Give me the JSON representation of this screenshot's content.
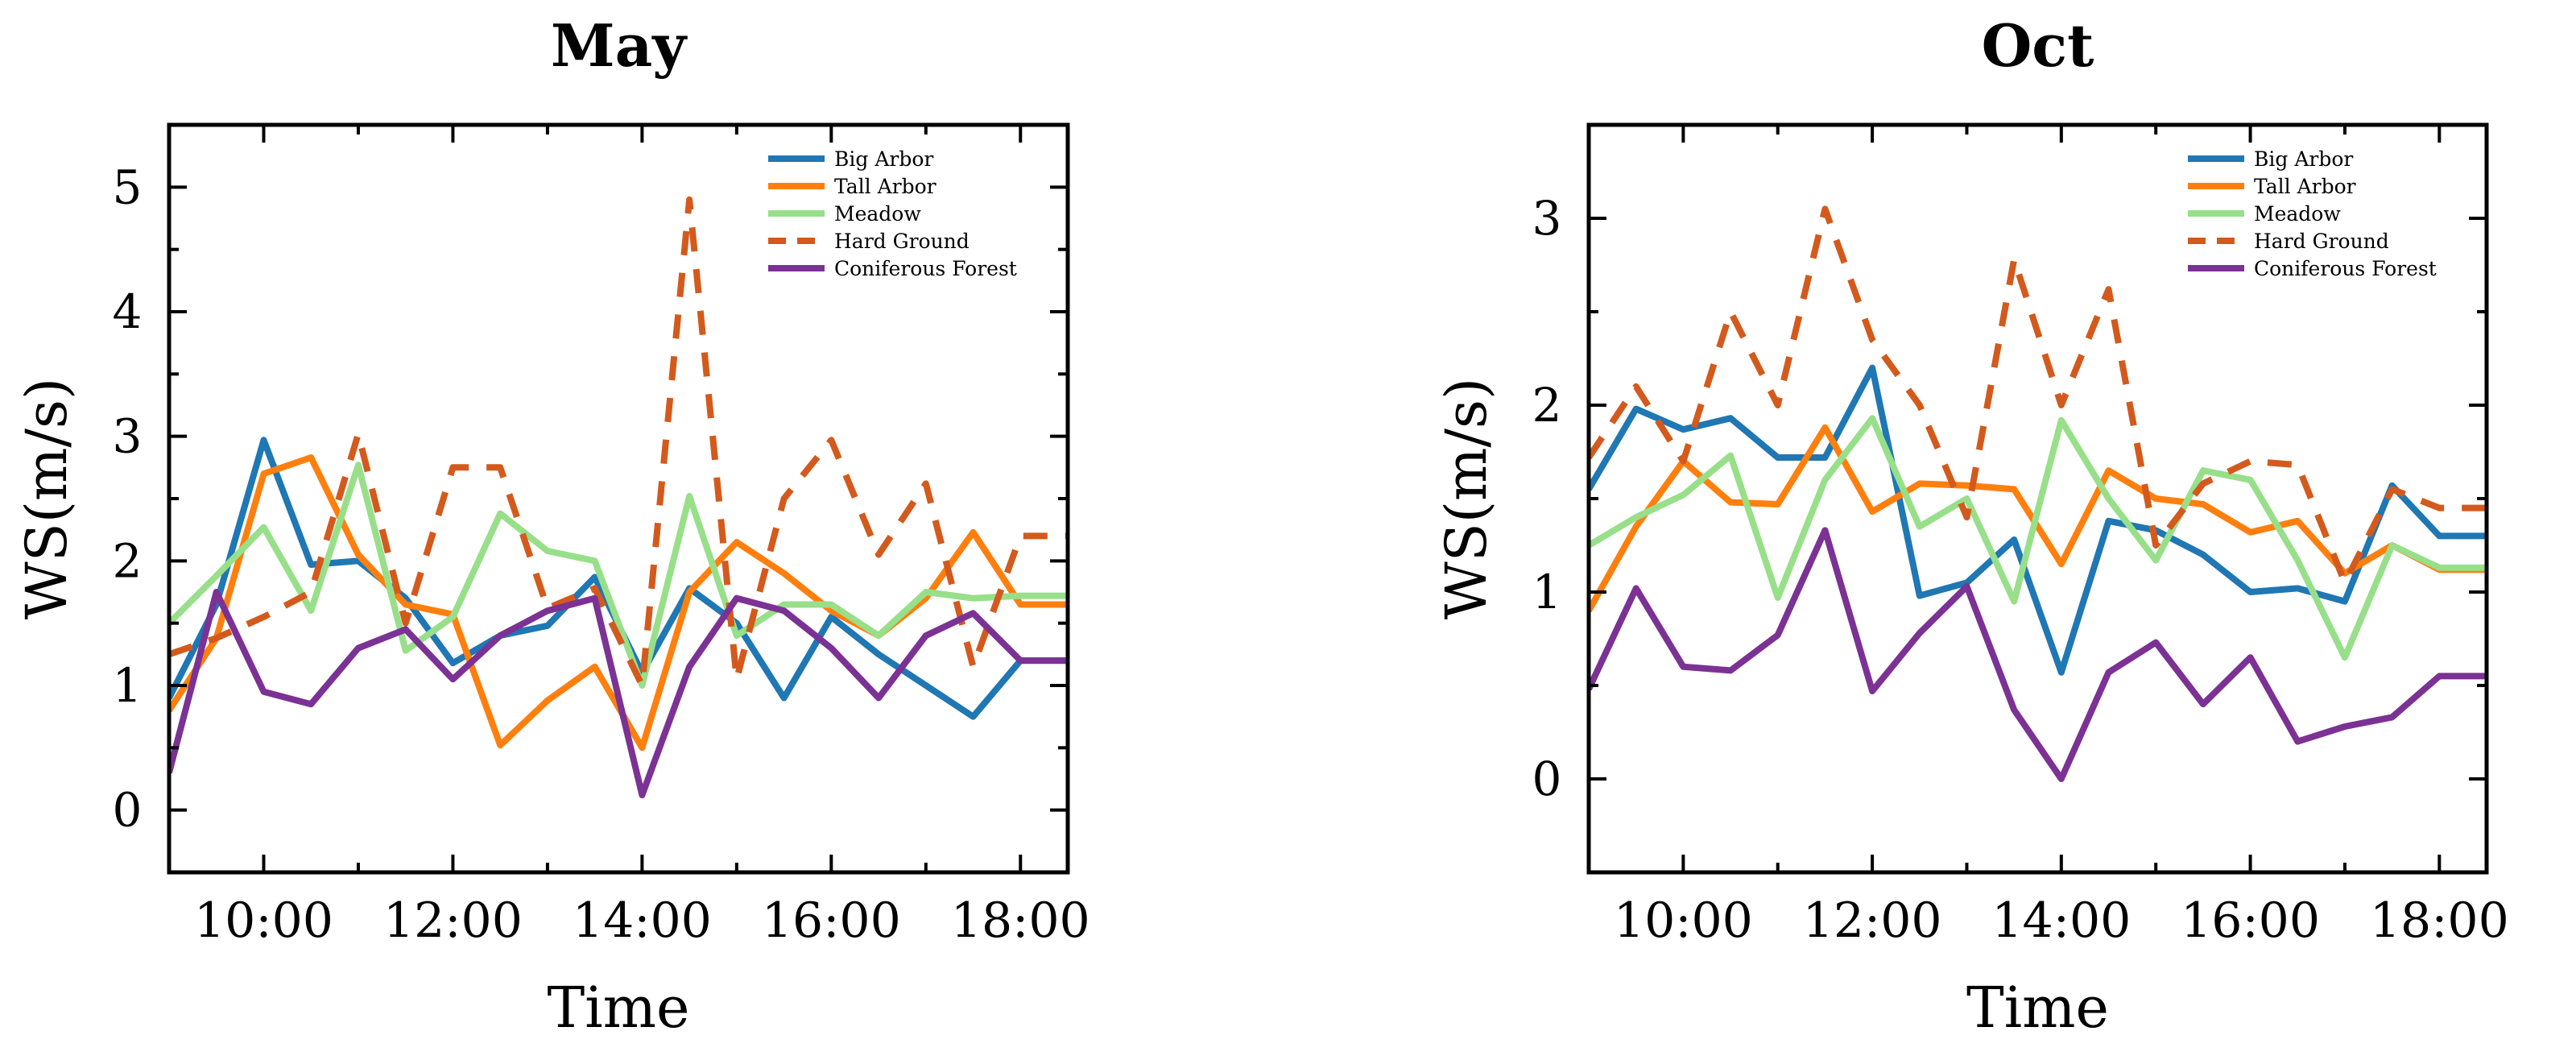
{
  "chart_data": [
    {
      "type": "line",
      "title": "May",
      "xlabel": "Time",
      "ylabel": "WS(m/s)",
      "xlim": [
        9.0,
        18.5
      ],
      "ylim": [
        -0.5,
        5.5
      ],
      "xticks": [
        10,
        12,
        14,
        16,
        18
      ],
      "xtick_labels": [
        "10:00",
        "12:00",
        "14:00",
        "16:00",
        "18:00"
      ],
      "yticks": [
        0,
        1,
        2,
        3,
        4,
        5
      ],
      "ytick_labels": [
        "0",
        "1",
        "2",
        "3",
        "4",
        "5"
      ],
      "legend_position": "top-right",
      "x": [
        9.0,
        9.5,
        10.0,
        10.5,
        11.0,
        11.5,
        12.0,
        12.5,
        13.0,
        13.5,
        14.0,
        14.5,
        15.0,
        15.5,
        16.0,
        16.5,
        17.0,
        17.5,
        18.0,
        18.5
      ],
      "series": [
        {
          "name": "Big Arbor",
          "color": "#1f77b4",
          "dash": "solid",
          "values": [
            0.9,
            1.65,
            2.97,
            1.97,
            2.0,
            1.7,
            1.18,
            1.4,
            1.48,
            1.87,
            1.1,
            1.78,
            1.5,
            0.9,
            1.55,
            1.25,
            1.0,
            0.75,
            1.2,
            1.2
          ]
        },
        {
          "name": "Tall Arbor",
          "color": "#ff7f0e",
          "dash": "solid",
          "values": [
            0.8,
            1.38,
            2.7,
            2.83,
            2.05,
            1.65,
            1.57,
            0.52,
            0.88,
            1.15,
            0.5,
            1.75,
            2.15,
            1.9,
            1.6,
            1.4,
            1.7,
            2.23,
            1.65,
            1.65
          ]
        },
        {
          "name": "Meadow",
          "color": "#98df8a",
          "dash": "solid",
          "values": [
            1.5,
            1.88,
            2.27,
            1.6,
            2.77,
            1.28,
            1.55,
            2.38,
            2.08,
            2.0,
            1.0,
            2.52,
            1.4,
            1.65,
            1.65,
            1.4,
            1.75,
            1.7,
            1.72,
            1.72
          ]
        },
        {
          "name": "Hard Ground",
          "color": "#d35a1c",
          "dash": "dashed",
          "values": [
            1.25,
            1.38,
            1.55,
            1.75,
            3.02,
            1.5,
            2.75,
            2.75,
            1.62,
            1.78,
            1.0,
            4.9,
            1.05,
            2.5,
            2.97,
            2.05,
            2.62,
            1.15,
            2.2,
            2.2
          ]
        },
        {
          "name": "Coniferous Forest",
          "color": "#7b3294",
          "dash": "solid",
          "values": [
            0.3,
            1.75,
            0.95,
            0.85,
            1.3,
            1.45,
            1.05,
            1.4,
            1.6,
            1.7,
            0.12,
            1.15,
            1.7,
            1.6,
            1.3,
            0.9,
            1.4,
            1.58,
            1.2,
            1.2
          ]
        }
      ]
    },
    {
      "type": "line",
      "title": "Oct",
      "xlabel": "Time",
      "ylabel": "WS(m/s)",
      "xlim": [
        9.0,
        18.5
      ],
      "ylim": [
        -0.5,
        3.5
      ],
      "xticks": [
        10,
        12,
        14,
        16,
        18
      ],
      "xtick_labels": [
        "10:00",
        "12:00",
        "14:00",
        "16:00",
        "18:00"
      ],
      "yticks": [
        0,
        1,
        2,
        3
      ],
      "ytick_labels": [
        "0",
        "1",
        "2",
        "3"
      ],
      "legend_position": "top-right",
      "x": [
        9.0,
        9.5,
        10.0,
        10.5,
        11.0,
        11.5,
        12.0,
        12.5,
        13.0,
        13.5,
        14.0,
        14.5,
        15.0,
        15.5,
        16.0,
        16.5,
        17.0,
        17.5,
        18.0,
        18.5
      ],
      "series": [
        {
          "name": "Big Arbor",
          "color": "#1f77b4",
          "dash": "solid",
          "values": [
            1.55,
            1.98,
            1.87,
            1.93,
            1.72,
            1.72,
            2.2,
            0.98,
            1.05,
            1.28,
            0.57,
            1.38,
            1.33,
            1.2,
            1.0,
            1.02,
            0.95,
            1.57,
            1.3,
            1.3
          ]
        },
        {
          "name": "Tall Arbor",
          "color": "#ff7f0e",
          "dash": "solid",
          "values": [
            0.9,
            1.35,
            1.7,
            1.48,
            1.47,
            1.88,
            1.43,
            1.58,
            1.57,
            1.55,
            1.15,
            1.65,
            1.5,
            1.47,
            1.32,
            1.38,
            1.1,
            1.25,
            1.12,
            1.12
          ]
        },
        {
          "name": "Meadow",
          "color": "#98df8a",
          "dash": "solid",
          "values": [
            1.25,
            1.4,
            1.52,
            1.73,
            0.97,
            1.6,
            1.93,
            1.35,
            1.5,
            0.95,
            1.92,
            1.5,
            1.17,
            1.65,
            1.6,
            1.17,
            0.65,
            1.25,
            1.13,
            1.13
          ]
        },
        {
          "name": "Hard Ground",
          "color": "#d35a1c",
          "dash": "dashed",
          "values": [
            1.72,
            2.1,
            1.7,
            2.5,
            2.0,
            3.05,
            2.35,
            2.0,
            1.4,
            2.78,
            2.0,
            2.62,
            1.25,
            1.58,
            1.7,
            1.68,
            1.05,
            1.55,
            1.45,
            1.45
          ]
        },
        {
          "name": "Coniferous Forest",
          "color": "#7b3294",
          "dash": "solid",
          "values": [
            0.48,
            1.02,
            0.6,
            0.58,
            0.77,
            1.33,
            0.47,
            0.78,
            1.03,
            0.37,
            0.0,
            0.57,
            0.73,
            0.4,
            0.65,
            0.2,
            0.28,
            0.33,
            0.55,
            0.55
          ]
        }
      ]
    }
  ]
}
